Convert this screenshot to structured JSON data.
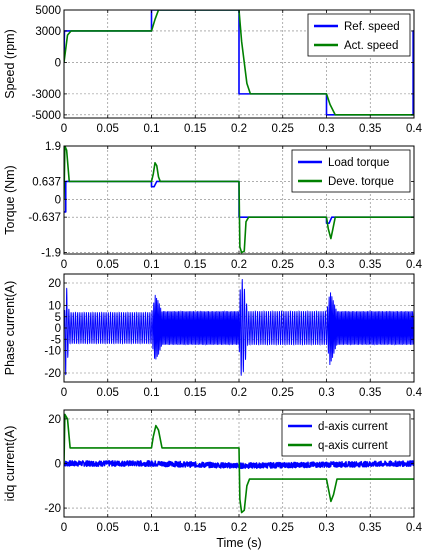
{
  "chart_data": [
    {
      "type": "line",
      "ylabel": "Speed (rpm)",
      "xlim": [
        0,
        0.4
      ],
      "ylim": [
        -5300,
        5000
      ],
      "yticks": [
        -5000,
        -3000,
        0,
        3000,
        5000
      ],
      "ytick_labels": [
        "-5000",
        "-3000",
        "0",
        "3000",
        "5000"
      ],
      "xticks": [
        0,
        0.05,
        0.1,
        0.15,
        0.2,
        0.25,
        0.3,
        0.35,
        0.4
      ],
      "xtick_labels": [
        "0",
        "0.05",
        "0.1",
        "0.15",
        "0.2",
        "0.25",
        "0.3",
        "0.35",
        "0.4"
      ],
      "grid": true,
      "legend_position": "top-right",
      "series": [
        {
          "name": "Ref. speed",
          "color": "#0000ff",
          "x": [
            0,
            0.0005,
            0.1,
            0.1,
            0.2,
            0.2,
            0.3,
            0.3,
            0.399,
            0.399,
            0.4
          ],
          "y": [
            0,
            3000,
            3000,
            5000,
            5000,
            -3000,
            -3000,
            -5000,
            -5000,
            3000,
            3000
          ]
        },
        {
          "name": "Act. speed",
          "color": "#008000",
          "x": [
            0,
            0.004,
            0.008,
            0.1,
            0.104,
            0.108,
            0.2,
            0.203,
            0.209,
            0.213,
            0.3,
            0.304,
            0.31,
            0.4
          ],
          "y": [
            0,
            2600,
            3000,
            3000,
            4100,
            5000,
            5000,
            2000,
            -2000,
            -3000,
            -3000,
            -4000,
            -5000,
            -5000
          ]
        }
      ]
    },
    {
      "type": "line",
      "ylabel": "Torque (Nm)",
      "xlim": [
        0,
        0.4
      ],
      "ylim": [
        -1.95,
        1.9
      ],
      "yticks": [
        -1.9,
        -0.637,
        0,
        0.637,
        1.9
      ],
      "ytick_labels": [
        "-1.9",
        "-0.637",
        "0",
        "0.637",
        "1.9"
      ],
      "xticks": [
        0,
        0.05,
        0.1,
        0.15,
        0.2,
        0.25,
        0.3,
        0.35,
        0.4
      ],
      "xtick_labels": [
        "0",
        "0.05",
        "0.1",
        "0.15",
        "0.2",
        "0.25",
        "0.3",
        "0.35",
        "0.4"
      ],
      "grid": true,
      "legend_position": "top-right",
      "series": [
        {
          "name": "Load torque",
          "color": "#0000ff",
          "x": [
            0,
            0.002,
            0.002,
            0.1,
            0.1,
            0.103,
            0.106,
            0.2,
            0.2,
            0.3,
            0.3,
            0.303,
            0.306,
            0.4
          ],
          "y": [
            -0.45,
            -0.45,
            0.637,
            0.637,
            0.45,
            0.45,
            0.637,
            0.637,
            -0.637,
            -0.637,
            -0.85,
            -0.85,
            -0.637,
            -0.637
          ]
        },
        {
          "name": "Deve. torque",
          "color": "#008000",
          "x": [
            0,
            0.001,
            0.003,
            0.006,
            0.1,
            0.102,
            0.104,
            0.106,
            0.108,
            0.11,
            0.2,
            0.201,
            0.203,
            0.206,
            0.208,
            0.211,
            0.3,
            0.302,
            0.305,
            0.307,
            0.31,
            0.4
          ],
          "y": [
            0,
            1.9,
            1.75,
            0.637,
            0.637,
            0.9,
            1.3,
            1.2,
            0.8,
            0.637,
            0.637,
            -1.7,
            -1.9,
            -1.85,
            -0.8,
            -0.637,
            -0.637,
            -1.05,
            -1.4,
            -1.1,
            -0.637,
            -0.637
          ]
        }
      ]
    },
    {
      "type": "line",
      "ylabel": "Phase current(A)",
      "xlim": [
        0,
        0.4
      ],
      "ylim": [
        -24,
        24
      ],
      "yticks": [
        -20,
        -10,
        -5,
        0,
        5,
        10,
        20
      ],
      "ytick_labels": [
        "-20",
        "-10",
        "-5",
        "0",
        "5",
        "10",
        "20"
      ],
      "xticks": [
        0,
        0.05,
        0.1,
        0.15,
        0.2,
        0.25,
        0.3,
        0.35,
        0.4
      ],
      "xtick_labels": [
        "0",
        "0.05",
        "0.1",
        "0.15",
        "0.2",
        "0.25",
        "0.3",
        "0.35",
        "0.4"
      ],
      "grid": true,
      "envelope": {
        "note": "sinusoidal phase current, amplitude vs time",
        "x": [
          0,
          0.002,
          0.006,
          0.1,
          0.102,
          0.104,
          0.108,
          0.112,
          0.2,
          0.201,
          0.203,
          0.206,
          0.21,
          0.3,
          0.302,
          0.304,
          0.308,
          0.312,
          0.4
        ],
        "amplitude": [
          0,
          22,
          7,
          7,
          10,
          15,
          12,
          7.5,
          7.5,
          16,
          23,
          18,
          7.5,
          7.5,
          11,
          17,
          12,
          7.5,
          7.5
        ],
        "frequency_hz": [
          100,
          100,
          100,
          100,
          130,
          160,
          160,
          160,
          160,
          120,
          100,
          100,
          100,
          100,
          130,
          160,
          160,
          160,
          160
        ]
      },
      "color": "#0000ff"
    },
    {
      "type": "line",
      "ylabel": "idq current(A)",
      "xlabel": "Time (s)",
      "xlim": [
        0,
        0.4
      ],
      "ylim": [
        -24,
        24
      ],
      "yticks": [
        -20,
        0,
        20
      ],
      "ytick_labels": [
        "-20",
        "0",
        "20"
      ],
      "xticks": [
        0,
        0.05,
        0.1,
        0.15,
        0.2,
        0.25,
        0.3,
        0.35,
        0.4
      ],
      "xtick_labels": [
        "0",
        "0.05",
        "0.1",
        "0.15",
        "0.2",
        "0.25",
        "0.3",
        "0.35",
        "0.4"
      ],
      "grid": true,
      "legend_position": "top-right",
      "series": [
        {
          "name": "d-axis current",
          "color": "#0000ff",
          "x": [
            0,
            0.1,
            0.2,
            0.3,
            0.4
          ],
          "y": [
            0,
            0,
            -1,
            -0.5,
            0
          ],
          "noise_amplitude": 1.2
        },
        {
          "name": "q-axis current",
          "color": "#008000",
          "x": [
            0,
            0.001,
            0.004,
            0.007,
            0.1,
            0.102,
            0.105,
            0.108,
            0.112,
            0.2,
            0.201,
            0.203,
            0.206,
            0.209,
            0.212,
            0.3,
            0.302,
            0.305,
            0.308,
            0.312,
            0.4
          ],
          "y": [
            0,
            22,
            20,
            7,
            7,
            12,
            17,
            15,
            7,
            7,
            -16,
            -22,
            -21,
            -10,
            -7,
            -7,
            -11,
            -17,
            -14,
            -7,
            -7
          ]
        }
      ]
    }
  ]
}
